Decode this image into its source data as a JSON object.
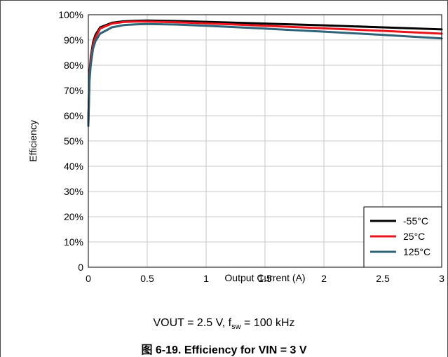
{
  "chart_data": {
    "type": "line",
    "title": "",
    "xlabel": "Output Current (A)",
    "ylabel": "Efficiency",
    "xlim": [
      0,
      3
    ],
    "ylim": [
      0,
      100
    ],
    "x_ticks": [
      0,
      0.5,
      1,
      1.5,
      2,
      2.5,
      3
    ],
    "x_tick_labels": [
      "0",
      "0.5",
      "1",
      "1.5",
      "2",
      "2.5",
      "3"
    ],
    "y_ticks": [
      0,
      10,
      20,
      30,
      40,
      50,
      60,
      70,
      80,
      90,
      100
    ],
    "y_tick_labels": [
      "0",
      "10%",
      "20%",
      "30%",
      "40%",
      "50%",
      "60%",
      "70%",
      "80%",
      "90%",
      "100%"
    ],
    "grid": true,
    "legend_position": "bottom-right",
    "series": [
      {
        "name": "-55°C",
        "color": "#000000",
        "x": [
          0.0,
          0.01,
          0.02,
          0.04,
          0.06,
          0.1,
          0.2,
          0.3,
          0.4,
          0.5,
          0.75,
          1.0,
          1.5,
          2.0,
          2.5,
          3.0
        ],
        "y": [
          58,
          77,
          83,
          89,
          92,
          95,
          96.8,
          97.4,
          97.6,
          97.7,
          97.5,
          97.2,
          96.5,
          95.8,
          95.0,
          94.2
        ]
      },
      {
        "name": "25°C",
        "color": "#e8141b",
        "x": [
          0.0,
          0.01,
          0.02,
          0.04,
          0.06,
          0.1,
          0.2,
          0.3,
          0.4,
          0.5,
          0.75,
          1.0,
          1.5,
          2.0,
          2.5,
          3.0
        ],
        "y": [
          57,
          76,
          82,
          88,
          91,
          94.5,
          96.5,
          97.1,
          97.3,
          97.3,
          97.0,
          96.6,
          95.6,
          94.6,
          93.6,
          92.5
        ]
      },
      {
        "name": "125°C",
        "color": "#2e6378",
        "x": [
          0.0,
          0.01,
          0.02,
          0.04,
          0.06,
          0.1,
          0.2,
          0.3,
          0.4,
          0.5,
          0.75,
          1.0,
          1.5,
          2.0,
          2.5,
          3.0
        ],
        "y": [
          56,
          74,
          80,
          86.5,
          89.5,
          92.5,
          95.0,
          95.9,
          96.2,
          96.3,
          96.1,
          95.6,
          94.5,
          93.3,
          92.0,
          90.6
        ]
      }
    ]
  },
  "conditions": {
    "prefix": "VOUT = 2.5 V, f",
    "sub": "sw",
    "suffix": " = 100 kHz"
  },
  "caption": "图 6-19. Efficiency for VIN = 3 V"
}
